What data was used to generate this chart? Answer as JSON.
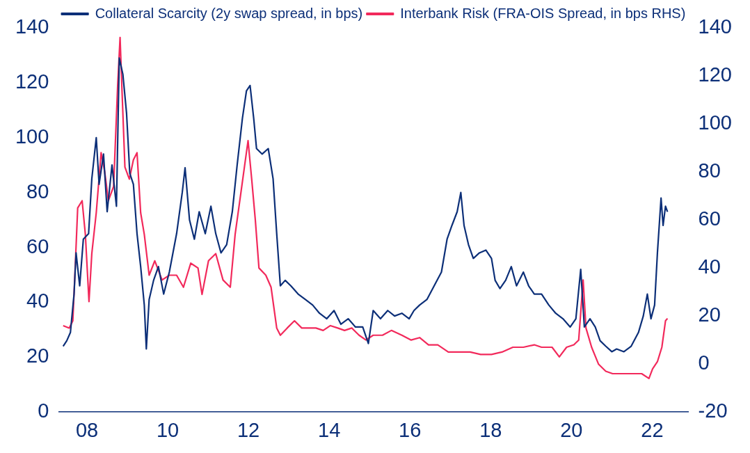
{
  "chart_data": {
    "type": "line",
    "legend": "top",
    "grid": false,
    "marker": "none",
    "line_style": "solid",
    "xlim": [
      2007.3,
      2022.9
    ],
    "xticks": [
      {
        "value": 2008,
        "label": "08"
      },
      {
        "value": 2010,
        "label": "10"
      },
      {
        "value": 2012,
        "label": "12"
      },
      {
        "value": 2014,
        "label": "14"
      },
      {
        "value": 2016,
        "label": "16"
      },
      {
        "value": 2018,
        "label": "18"
      },
      {
        "value": 2020,
        "label": "20"
      },
      {
        "value": 2022,
        "label": "22"
      }
    ],
    "ylim": [
      0,
      140
    ],
    "yticks": [
      0,
      20,
      40,
      60,
      80,
      100,
      120,
      140
    ],
    "y2lim": [
      -20,
      140
    ],
    "y2ticks": [
      -20,
      0,
      20,
      40,
      60,
      80,
      100,
      120,
      140
    ],
    "series": [
      {
        "name": "Collateral Scarcity (2y swap spread, in bps)",
        "color": "#0c2f78",
        "x": [
          2007.41,
          2007.5,
          2007.59,
          2007.68,
          2007.73,
          2007.82,
          2007.91,
          2008.04,
          2008.12,
          2008.23,
          2008.3,
          2008.41,
          2008.5,
          2008.62,
          2008.73,
          2008.8,
          2008.89,
          2008.98,
          2009.06,
          2009.15,
          2009.24,
          2009.33,
          2009.42,
          2009.47,
          2009.54,
          2009.65,
          2009.77,
          2009.9,
          2010.04,
          2010.22,
          2010.36,
          2010.43,
          2010.54,
          2010.66,
          2010.78,
          2010.93,
          2011.07,
          2011.19,
          2011.32,
          2011.46,
          2011.6,
          2011.72,
          2011.85,
          2011.95,
          2012.04,
          2012.13,
          2012.2,
          2012.34,
          2012.49,
          2012.61,
          2012.7,
          2012.79,
          2012.91,
          2013.05,
          2013.23,
          2013.41,
          2013.59,
          2013.76,
          2013.94,
          2014.12,
          2014.29,
          2014.47,
          2014.65,
          2014.83,
          2014.97,
          2015.09,
          2015.27,
          2015.45,
          2015.62,
          2015.8,
          2015.98,
          2016.1,
          2016.24,
          2016.42,
          2016.6,
          2016.78,
          2016.92,
          2017.04,
          2017.17,
          2017.26,
          2017.34,
          2017.45,
          2017.57,
          2017.72,
          2017.88,
          2018.02,
          2018.11,
          2018.23,
          2018.37,
          2018.51,
          2018.64,
          2018.81,
          2018.94,
          2019.08,
          2019.26,
          2019.44,
          2019.61,
          2019.79,
          2019.97,
          2020.11,
          2020.23,
          2020.32,
          2020.46,
          2020.59,
          2020.71,
          2020.85,
          2021.0,
          2021.12,
          2021.3,
          2021.48,
          2021.66,
          2021.78,
          2021.88,
          2021.97,
          2022.06,
          2022.13,
          2022.22,
          2022.27,
          2022.33,
          2022.38
        ],
        "values": [
          24,
          26,
          29,
          43,
          58,
          46,
          63,
          65,
          85,
          100,
          83,
          94,
          73,
          90,
          75,
          129,
          123,
          109,
          87,
          83,
          65,
          53,
          39,
          23,
          41,
          48,
          53,
          43,
          51,
          65,
          80,
          89,
          70,
          63,
          73,
          65,
          75,
          65,
          58,
          61,
          73,
          90,
          107,
          117,
          119,
          107,
          96,
          94,
          96,
          85,
          65,
          46,
          48,
          46,
          43,
          41,
          39,
          36,
          34,
          37,
          32,
          34,
          31,
          31,
          25,
          37,
          34,
          37,
          35,
          36,
          34,
          37,
          39,
          41,
          46,
          51,
          63,
          68,
          73,
          80,
          68,
          61,
          56,
          58,
          59,
          56,
          48,
          45,
          48,
          53,
          46,
          51,
          46,
          43,
          43,
          39,
          36,
          34,
          31,
          34,
          52,
          31,
          34,
          31,
          26,
          24,
          22,
          23,
          22,
          24,
          29,
          35,
          43,
          34,
          39,
          58,
          78,
          68,
          75,
          73
        ]
      },
      {
        "name": "Interbank Risk (FRA-OIS Spread, in bps RHS)",
        "color": "#f2295b",
        "axis": "y2",
        "x": [
          2007.41,
          2007.56,
          2007.65,
          2007.7,
          2007.77,
          2007.88,
          2007.96,
          2008.05,
          2008.12,
          2008.23,
          2008.35,
          2008.44,
          2008.53,
          2008.66,
          2008.76,
          2008.82,
          2008.87,
          2008.94,
          2009.05,
          2009.15,
          2009.24,
          2009.33,
          2009.42,
          2009.54,
          2009.68,
          2009.86,
          2010.04,
          2010.22,
          2010.39,
          2010.57,
          2010.75,
          2010.85,
          2011.01,
          2011.19,
          2011.37,
          2011.55,
          2011.67,
          2011.81,
          2011.9,
          2011.99,
          2012.08,
          2012.17,
          2012.26,
          2012.43,
          2012.56,
          2012.7,
          2012.79,
          2012.96,
          2013.14,
          2013.32,
          2013.5,
          2013.67,
          2013.85,
          2014.03,
          2014.21,
          2014.38,
          2014.56,
          2014.74,
          2014.91,
          2015.09,
          2015.32,
          2015.54,
          2015.8,
          2016.03,
          2016.24,
          2016.46,
          2016.69,
          2016.95,
          2017.22,
          2017.49,
          2017.75,
          2018.02,
          2018.28,
          2018.55,
          2018.81,
          2019.08,
          2019.26,
          2019.52,
          2019.7,
          2019.88,
          2020.06,
          2020.18,
          2020.29,
          2020.36,
          2020.5,
          2020.67,
          2020.85,
          2021.02,
          2021.2,
          2021.48,
          2021.74,
          2021.92,
          2022.01,
          2022.13,
          2022.24,
          2022.33,
          2022.38
        ],
        "values": [
          16,
          15,
          18,
          37,
          65,
          68,
          54,
          26,
          46,
          63,
          88,
          80,
          68,
          74,
          116,
          136,
          113,
          82,
          77,
          85,
          88,
          63,
          54,
          37,
          43,
          35,
          37,
          37,
          32,
          42,
          40,
          29,
          43,
          46,
          35,
          32,
          54,
          71,
          82,
          93,
          77,
          60,
          40,
          37,
          32,
          15,
          12,
          15,
          18,
          15,
          15,
          15,
          14,
          16,
          15,
          14,
          15,
          12,
          10,
          12,
          12,
          14,
          12,
          10,
          11,
          8,
          8,
          5,
          5,
          5,
          4,
          4,
          5,
          7,
          7,
          8,
          7,
          7,
          3,
          7,
          8,
          10,
          35,
          15,
          7,
          0,
          -3,
          -4,
          -4,
          -4,
          -4,
          -6,
          -2,
          1,
          7,
          18,
          19
        ]
      }
    ]
  }
}
